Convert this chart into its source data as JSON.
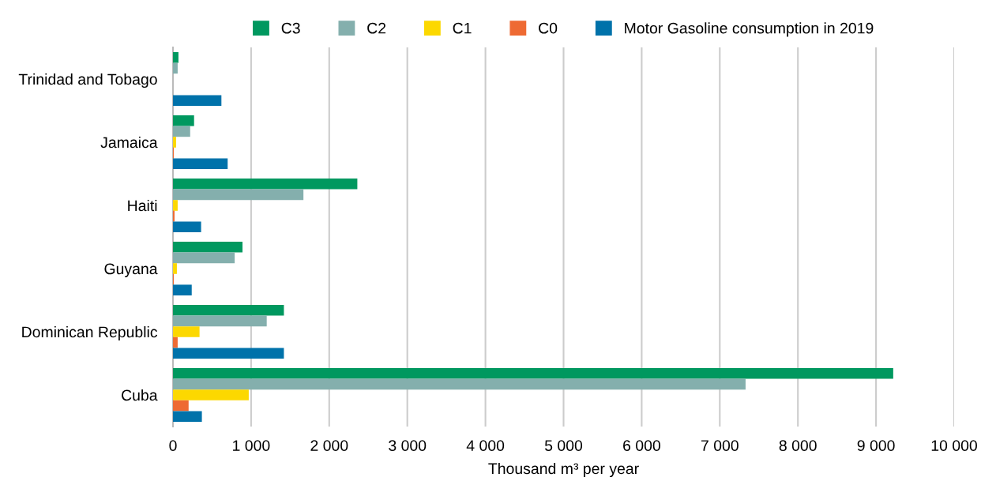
{
  "chart_data": {
    "type": "bar",
    "orientation": "horizontal",
    "xlabel": "Thousand m³ per year",
    "categories": [
      "Trinidad and Tobago",
      "Jamaica",
      "Haiti",
      "Guyana",
      "Dominican Republic",
      "Cuba"
    ],
    "series": [
      {
        "name": "C3",
        "color": "#00985f",
        "values": [
          70,
          270,
          2360,
          890,
          1420,
          9220
        ]
      },
      {
        "name": "C2",
        "color": "#84afad",
        "values": [
          60,
          220,
          1670,
          790,
          1200,
          7330
        ]
      },
      {
        "name": "C1",
        "color": "#fcd800",
        "values": [
          null,
          40,
          60,
          50,
          340,
          970
        ]
      },
      {
        "name": "C0",
        "color": "#ee6a33",
        "values": [
          null,
          10,
          20,
          10,
          60,
          200
        ]
      },
      {
        "name": "Motor Gasoline consumption in 2019",
        "color": "#0072aa",
        "values": [
          620,
          700,
          360,
          240,
          1420,
          370
        ]
      }
    ],
    "xlim": [
      0,
      10000
    ],
    "xticks": [
      0,
      {
        "value": 1000,
        "label": "1 000"
      },
      {
        "value": 2000,
        "label": "2 000"
      },
      {
        "value": 3000,
        "label": "3 000"
      },
      {
        "value": 4000,
        "label": "4 000"
      },
      {
        "value": 5000,
        "label": "5 000"
      },
      {
        "value": 6000,
        "label": "6 000"
      },
      {
        "value": 7000,
        "label": "7 000"
      },
      {
        "value": 8000,
        "label": "8 000"
      },
      {
        "value": 9000,
        "label": "9 000"
      },
      {
        "value": 10000,
        "label": "10 000"
      }
    ],
    "grid": "x",
    "legend": "top"
  }
}
